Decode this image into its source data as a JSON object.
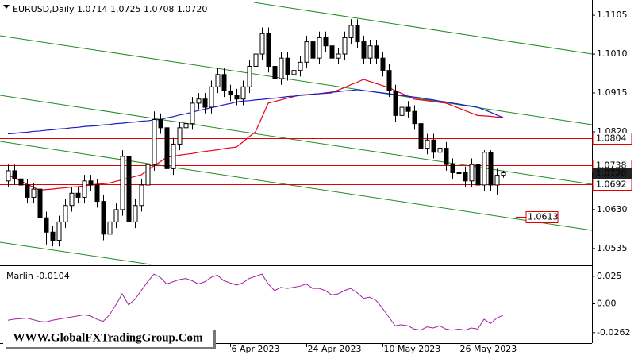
{
  "chart_data": {
    "type": "candlestick",
    "title": "EURUSD,Daily  1.0714 1.0725 1.0708 1.0720",
    "categories": [
      null,
      null,
      null,
      null,
      null,
      null,
      null,
      null,
      null,
      null,
      null,
      null,
      null,
      null,
      null,
      null,
      null,
      null,
      null,
      null,
      null,
      null,
      null,
      null,
      null,
      null,
      null,
      null,
      null,
      null,
      null,
      null,
      null,
      null,
      null,
      "6 Apr 2023",
      null,
      null,
      null,
      null,
      null,
      null,
      null,
      null,
      null,
      null,
      null,
      "24 Apr 2023",
      null,
      null,
      null,
      null,
      null,
      null,
      null,
      null,
      null,
      null,
      null,
      "10 May 2023",
      null,
      null,
      null,
      null,
      null,
      null,
      null,
      null,
      null,
      null,
      null,
      "26 May 2023",
      null,
      null,
      null,
      null,
      null,
      null,
      null
    ],
    "open": [
      1.07,
      1.0725,
      1.0705,
      1.069,
      1.066,
      1.068,
      1.061,
      1.0575,
      1.0555,
      1.06,
      1.064,
      1.067,
      1.066,
      1.07,
      1.069,
      1.065,
      1.057,
      1.06,
      1.063,
      1.076,
      1.06,
      1.064,
      1.069,
      1.074,
      1.085,
      1.083,
      1.073,
      1.079,
      1.083,
      1.084,
      1.089,
      1.09,
      1.088,
      1.093,
      1.096,
      1.092,
      1.091,
      1.09,
      1.093,
      1.098,
      1.101,
      1.106,
      1.098,
      1.095,
      1.1,
      1.096,
      1.097,
      1.099,
      1.104,
      1.1,
      1.105,
      1.103,
      1.1,
      1.101,
      1.105,
      1.108,
      1.104,
      1.1,
      1.103,
      1.1,
      1.097,
      1.092,
      1.086,
      1.088,
      1.087,
      1.084,
      1.078,
      1.08,
      1.077,
      1.078,
      1.074,
      1.072,
      1.072,
      1.07,
      1.074,
      1.069,
      1.077,
      1.069,
      1.0714
    ],
    "high": [
      1.074,
      1.074,
      1.072,
      1.0705,
      1.0695,
      1.0695,
      1.0625,
      1.059,
      1.0615,
      1.0655,
      1.0685,
      1.0685,
      1.0715,
      1.0715,
      1.0705,
      1.0665,
      1.0615,
      1.0645,
      1.0775,
      1.0775,
      1.0655,
      1.0705,
      1.0755,
      1.087,
      1.0865,
      1.0845,
      1.0805,
      1.0845,
      1.0855,
      1.0905,
      1.0915,
      1.0915,
      1.0945,
      1.0975,
      1.0975,
      1.0935,
      1.0925,
      1.0945,
      1.0995,
      1.1025,
      1.1075,
      1.1075,
      1.0995,
      1.1015,
      1.1015,
      1.0985,
      1.1005,
      1.1055,
      1.1055,
      1.1065,
      1.1065,
      1.1045,
      1.1025,
      1.1065,
      1.1095,
      1.1095,
      1.1055,
      1.1045,
      1.1045,
      1.1015,
      1.0985,
      1.0935,
      1.0895,
      1.0895,
      1.0885,
      1.0855,
      1.0815,
      1.0815,
      1.0795,
      1.0795,
      1.0755,
      1.0735,
      1.0735,
      1.0755,
      1.0755,
      1.0775,
      1.0775,
      1.073,
      1.0725
    ],
    "low": [
      1.0685,
      1.069,
      1.0675,
      1.0645,
      1.0645,
      1.0595,
      1.0545,
      1.054,
      1.054,
      1.0585,
      1.0625,
      1.0645,
      1.0645,
      1.0675,
      1.0635,
      1.0555,
      1.0555,
      1.0585,
      1.0615,
      1.0515,
      1.0585,
      1.0625,
      1.0675,
      1.0725,
      1.0815,
      1.0715,
      1.0715,
      1.0775,
      1.0815,
      1.0825,
      1.0875,
      1.0865,
      1.0865,
      1.0915,
      1.0905,
      1.0895,
      1.0885,
      1.0885,
      1.0915,
      1.0965,
      1.0995,
      1.0965,
      1.0935,
      1.0935,
      1.0945,
      1.0945,
      1.0955,
      1.0975,
      1.0985,
      1.0985,
      1.1015,
      1.0985,
      1.0985,
      1.0995,
      1.1035,
      1.1025,
      1.0985,
      1.0985,
      1.0985,
      1.0955,
      1.0905,
      1.0845,
      1.0845,
      1.0855,
      1.0825,
      1.0765,
      1.0765,
      1.0755,
      1.0755,
      1.0725,
      1.0705,
      1.0705,
      1.0685,
      1.0685,
      1.0635,
      1.0675,
      1.0675,
      1.0665,
      1.0708
    ],
    "close": [
      1.0725,
      1.0705,
      1.069,
      1.066,
      1.068,
      1.061,
      1.0575,
      1.0555,
      1.06,
      1.064,
      1.067,
      1.066,
      1.07,
      1.069,
      1.065,
      1.057,
      1.06,
      1.063,
      1.076,
      1.06,
      1.064,
      1.069,
      1.074,
      1.085,
      1.083,
      1.073,
      1.079,
      1.083,
      1.084,
      1.089,
      1.09,
      1.088,
      1.093,
      1.096,
      1.092,
      1.091,
      1.09,
      1.093,
      1.098,
      1.101,
      1.106,
      1.098,
      1.095,
      1.1,
      1.096,
      1.097,
      1.099,
      1.104,
      1.1,
      1.105,
      1.103,
      1.1,
      1.101,
      1.105,
      1.108,
      1.104,
      1.1,
      1.103,
      1.1,
      1.097,
      1.092,
      1.086,
      1.088,
      1.087,
      1.084,
      1.078,
      1.08,
      1.077,
      1.078,
      1.074,
      1.072,
      1.072,
      1.07,
      1.074,
      1.069,
      1.077,
      1.069,
      1.0714,
      1.072
    ],
    "bull_color": "#ffffff",
    "bear_color": "#000000",
    "moving_averages": [
      {
        "color": "#e8001c",
        "values": [
          1.0715,
          1.0707,
          1.07,
          1.0692,
          1.0685,
          1.0677,
          1.0679,
          1.068,
          1.0682,
          1.0683,
          1.0685,
          1.0686,
          1.0688,
          1.069,
          1.0692,
          1.0693,
          1.0695,
          1.0699,
          1.0703,
          1.0707,
          1.0711,
          1.0715,
          1.0726,
          1.0737,
          1.0747,
          1.0758,
          1.076,
          1.0763,
          1.0765,
          1.0767,
          1.077,
          1.0772,
          1.0774,
          1.0776,
          1.0779,
          1.0781,
          1.0783,
          1.0795,
          1.0808,
          1.082,
          1.0855,
          1.089,
          1.0894,
          1.0898,
          1.0902,
          1.0906,
          1.091,
          1.0911,
          1.0912,
          1.0913,
          1.0914,
          1.0915,
          1.0922,
          1.0928,
          1.0935,
          1.0941,
          1.0948,
          1.0943,
          1.0938,
          1.0933,
          1.0928,
          1.0921,
          1.0914,
          1.0907,
          1.09,
          1.0898,
          1.0896,
          1.0894,
          1.0892,
          1.089,
          1.0884,
          1.0878,
          1.0872,
          1.0866,
          1.086,
          1.0859,
          1.0858,
          1.0856,
          1.0855
        ]
      },
      {
        "color": "#1c1cc8",
        "values": [
          1.0815,
          1.0816,
          1.0818,
          1.0819,
          1.0821,
          1.0822,
          1.0824,
          1.0825,
          1.0827,
          1.0828,
          1.083,
          1.0831,
          1.0833,
          1.0834,
          1.0835,
          1.0837,
          1.0838,
          1.084,
          1.0841,
          1.0843,
          1.0844,
          1.0846,
          1.0847,
          1.0849,
          1.085,
          1.0854,
          1.0857,
          1.0861,
          1.0864,
          1.0868,
          1.0872,
          1.0875,
          1.0879,
          1.0882,
          1.0886,
          1.0889,
          1.0893,
          1.0895,
          1.0896,
          1.0898,
          1.0899,
          1.0901,
          1.0902,
          1.0904,
          1.0906,
          1.0907,
          1.0909,
          1.091,
          1.0912,
          1.0913,
          1.0915,
          1.0917,
          1.0918,
          1.092,
          1.0921,
          1.0923,
          1.0921,
          1.0919,
          1.0917,
          1.0915,
          1.0913,
          1.0911,
          1.0909,
          1.0907,
          1.0905,
          1.0903,
          1.09,
          1.0898,
          1.0895,
          1.0893,
          1.089,
          1.0888,
          1.0885,
          1.0883,
          1.088,
          1.0874,
          1.0868,
          1.0861,
          1.0855
        ]
      }
    ],
    "ylim": [
      1.0494,
      1.1142
    ],
    "yticks": [
      1.1105,
      {
        "value": 1.101,
        "label": "1.1010"
      },
      1.0915,
      {
        "value": 1.082,
        "label": "1.0820"
      },
      {
        "value": 1.063,
        "label": "1.0630"
      },
      1.0535
    ],
    "levels": [
      {
        "value": 1.0804,
        "label": "1.0804",
        "color": "#e00000"
      },
      {
        "value": 1.0738,
        "label": "1.0738",
        "color": "#e00000"
      },
      {
        "value": 1.0692,
        "label": "1.0692",
        "color": "#e00000"
      }
    ],
    "last_price": {
      "value": 1.072,
      "label": "1.0720"
    },
    "price_label": {
      "value": 1.0613,
      "label": "1.0613",
      "color": "#e00000"
    },
    "indicator": {
      "type": "line",
      "title": "Marlin -0.0104",
      "color": "#a020a0",
      "values": [
        -0.015,
        -0.014,
        -0.0135,
        -0.013,
        -0.0145,
        -0.016,
        -0.0165,
        -0.015,
        -0.014,
        -0.013,
        -0.012,
        -0.011,
        -0.01,
        -0.011,
        -0.014,
        -0.016,
        -0.01,
        -0.001,
        0.009,
        -0.001,
        0.004,
        0.012,
        0.02,
        0.027,
        0.024,
        0.018,
        0.02,
        0.022,
        0.023,
        0.021,
        0.018,
        0.02,
        0.024,
        0.026,
        0.021,
        0.019,
        0.017,
        0.019,
        0.023,
        0.025,
        0.027,
        0.018,
        0.012,
        0.015,
        0.014,
        0.015,
        0.016,
        0.018,
        0.014,
        0.014,
        0.012,
        0.008,
        0.009,
        0.012,
        0.014,
        0.01,
        0.005,
        0.006,
        0.003,
        -0.004,
        -0.012,
        -0.02,
        -0.019,
        -0.02,
        -0.023,
        -0.024,
        -0.021,
        -0.022,
        -0.02,
        -0.023,
        -0.024,
        -0.023,
        -0.024,
        -0.022,
        -0.023,
        -0.014,
        -0.018,
        -0.013,
        -0.0104
      ],
      "ylim": [
        -0.0357,
        0.0321
      ],
      "yticks": [
        0.025,
        {
          "value": 0,
          "label": "0.00"
        },
        -0.0262
      ]
    },
    "watermark": "WWW.GlobalFXTradingGroup.Com"
  }
}
